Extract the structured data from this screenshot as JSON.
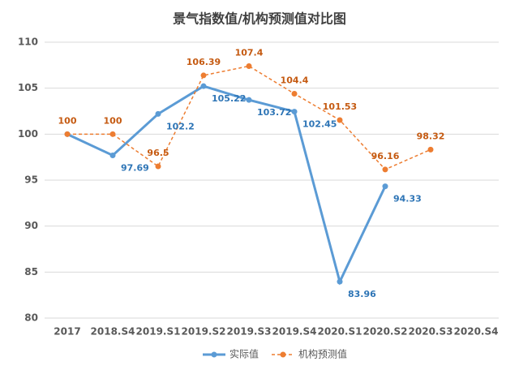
{
  "chart_data": {
    "type": "line",
    "title": "景气指数值/机构预测值对比图",
    "categories": [
      "2017",
      "2018.S4",
      "2019.S1",
      "2019.S2",
      "2019.S3",
      "2019.S4",
      "2020.S1",
      "2020.S2",
      "2020.S3",
      "2020.S4"
    ],
    "series": [
      {
        "name": "实际值",
        "color": "#5b9bd5",
        "values": [
          100,
          97.69,
          102.2,
          105.22,
          103.72,
          102.45,
          83.96,
          94.33,
          null,
          null
        ]
      },
      {
        "name": "机构预测值",
        "color": "#ed7d31",
        "values": [
          100,
          100,
          96.5,
          106.39,
          107.4,
          104.4,
          101.53,
          96.16,
          98.32,
          null
        ]
      }
    ],
    "ylim": [
      80,
      110
    ],
    "yticks": [
      80,
      85,
      90,
      95,
      100,
      105,
      110
    ],
    "grid": true,
    "legend": "bottom"
  }
}
